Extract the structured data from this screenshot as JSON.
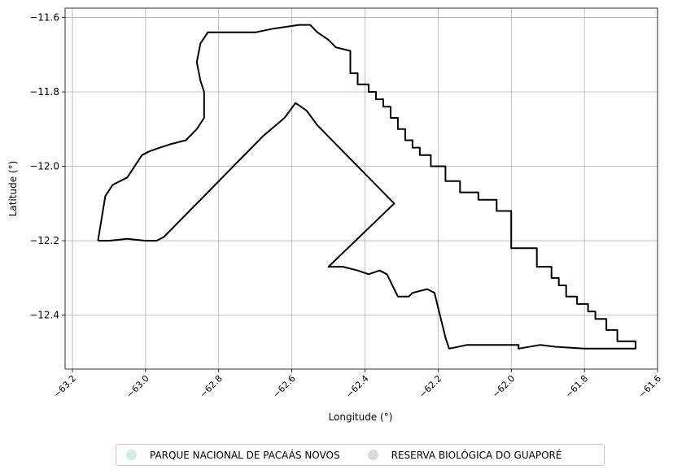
{
  "chart_data": {
    "type": "map",
    "xlabel": "Longitude (°)",
    "ylabel": "Latitude (°)",
    "xlim": [
      -63.22,
      -61.6
    ],
    "ylim": [
      -12.545,
      -11.575
    ],
    "x_ticks": [
      -63.2,
      -63.0,
      -62.8,
      -62.6,
      -62.4,
      -62.2,
      -62.0,
      -61.8,
      -61.6
    ],
    "y_ticks": [
      -12.4,
      -12.2,
      -12.0,
      -11.8,
      -11.6
    ],
    "x_tick_labels": [
      "−63.2",
      "−63.0",
      "−62.8",
      "−62.6",
      "−62.4",
      "−62.2",
      "−62.0",
      "−61.8",
      "−61.6"
    ],
    "y_tick_labels": [
      "−12.4",
      "−12.2",
      "−12.0",
      "−11.8",
      "−11.6"
    ],
    "grid": true,
    "legend_position": "bottom-center",
    "legend": [
      {
        "name": "PARQUE NACIONAL DE PACAÁS NOVOS",
        "color": "#cdeee3"
      },
      {
        "name": "RESERVA BIOLÓGICA DO GUAPORÉ",
        "color": "#dadada"
      }
    ],
    "outline_color": "#000000",
    "boundary": [
      [
        -63.13,
        -12.2
      ],
      [
        -63.12,
        -12.14
      ],
      [
        -63.11,
        -12.08
      ],
      [
        -63.09,
        -12.05
      ],
      [
        -63.05,
        -12.03
      ],
      [
        -63.01,
        -11.97
      ],
      [
        -62.99,
        -11.96
      ],
      [
        -62.96,
        -11.95
      ],
      [
        -62.93,
        -11.94
      ],
      [
        -62.89,
        -11.93
      ],
      [
        -62.86,
        -11.9
      ],
      [
        -62.84,
        -11.87
      ],
      [
        -62.84,
        -11.8
      ],
      [
        -62.85,
        -11.77
      ],
      [
        -62.86,
        -11.72
      ],
      [
        -62.85,
        -11.67
      ],
      [
        -62.83,
        -11.64
      ],
      [
        -62.79,
        -11.64
      ],
      [
        -62.75,
        -11.64
      ],
      [
        -62.7,
        -11.64
      ],
      [
        -62.65,
        -11.63
      ],
      [
        -62.58,
        -11.62
      ],
      [
        -62.55,
        -11.62
      ],
      [
        -62.53,
        -11.64
      ],
      [
        -62.5,
        -11.66
      ],
      [
        -62.48,
        -11.68
      ],
      [
        -62.44,
        -11.69
      ],
      [
        -62.44,
        -11.75
      ],
      [
        -62.42,
        -11.75
      ],
      [
        -62.42,
        -11.78
      ],
      [
        -62.39,
        -11.78
      ],
      [
        -62.39,
        -11.8
      ],
      [
        -62.37,
        -11.8
      ],
      [
        -62.37,
        -11.82
      ],
      [
        -62.35,
        -11.82
      ],
      [
        -62.35,
        -11.84
      ],
      [
        -62.33,
        -11.84
      ],
      [
        -62.33,
        -11.87
      ],
      [
        -62.31,
        -11.87
      ],
      [
        -62.31,
        -11.9
      ],
      [
        -62.29,
        -11.9
      ],
      [
        -62.29,
        -11.93
      ],
      [
        -62.27,
        -11.93
      ],
      [
        -62.27,
        -11.95
      ],
      [
        -62.25,
        -11.95
      ],
      [
        -62.25,
        -11.97
      ],
      [
        -62.22,
        -11.97
      ],
      [
        -62.22,
        -12.0
      ],
      [
        -62.18,
        -12.0
      ],
      [
        -62.18,
        -12.04
      ],
      [
        -62.14,
        -12.04
      ],
      [
        -62.14,
        -12.07
      ],
      [
        -62.09,
        -12.07
      ],
      [
        -62.09,
        -12.09
      ],
      [
        -62.04,
        -12.09
      ],
      [
        -62.04,
        -12.12
      ],
      [
        -62.0,
        -12.12
      ],
      [
        -62.0,
        -12.22
      ],
      [
        -61.93,
        -12.22
      ],
      [
        -61.93,
        -12.27
      ],
      [
        -61.89,
        -12.27
      ],
      [
        -61.89,
        -12.3
      ],
      [
        -61.87,
        -12.3
      ],
      [
        -61.87,
        -12.32
      ],
      [
        -61.85,
        -12.32
      ],
      [
        -61.85,
        -12.35
      ],
      [
        -61.82,
        -12.35
      ],
      [
        -61.82,
        -12.37
      ],
      [
        -61.79,
        -12.37
      ],
      [
        -61.79,
        -12.39
      ],
      [
        -61.77,
        -12.39
      ],
      [
        -61.77,
        -12.41
      ],
      [
        -61.74,
        -12.41
      ],
      [
        -61.74,
        -12.44
      ],
      [
        -61.71,
        -12.44
      ],
      [
        -61.71,
        -12.47
      ],
      [
        -61.66,
        -12.47
      ],
      [
        -61.66,
        -12.49
      ],
      [
        -61.72,
        -12.49
      ],
      [
        -61.8,
        -12.49
      ],
      [
        -61.88,
        -12.485
      ],
      [
        -61.92,
        -12.48
      ],
      [
        -61.98,
        -12.49
      ],
      [
        -61.98,
        -12.48
      ],
      [
        -62.04,
        -12.48
      ],
      [
        -62.12,
        -12.48
      ],
      [
        -62.17,
        -12.49
      ],
      [
        -62.18,
        -12.46
      ],
      [
        -62.19,
        -12.42
      ],
      [
        -62.2,
        -12.38
      ],
      [
        -62.21,
        -12.34
      ],
      [
        -62.23,
        -12.33
      ],
      [
        -62.27,
        -12.34
      ],
      [
        -62.28,
        -12.35
      ],
      [
        -62.29,
        -12.35
      ],
      [
        -62.31,
        -12.35
      ],
      [
        -62.32,
        -12.33
      ],
      [
        -62.34,
        -12.29
      ],
      [
        -62.36,
        -12.28
      ],
      [
        -62.39,
        -12.29
      ],
      [
        -62.42,
        -12.28
      ],
      [
        -62.46,
        -12.27
      ],
      [
        -62.5,
        -12.27
      ],
      [
        -62.32,
        -12.1
      ],
      [
        -62.48,
        -11.94
      ],
      [
        -62.53,
        -11.89
      ],
      [
        -62.56,
        -11.85
      ],
      [
        -62.59,
        -11.83
      ],
      [
        -62.62,
        -11.87
      ],
      [
        -62.68,
        -11.92
      ],
      [
        -62.75,
        -11.99
      ],
      [
        -62.82,
        -12.06
      ],
      [
        -62.88,
        -12.12
      ],
      [
        -62.95,
        -12.19
      ],
      [
        -62.97,
        -12.2
      ],
      [
        -63.0,
        -12.2
      ],
      [
        -63.05,
        -12.195
      ],
      [
        -63.1,
        -12.2
      ],
      [
        -63.13,
        -12.2
      ]
    ]
  }
}
